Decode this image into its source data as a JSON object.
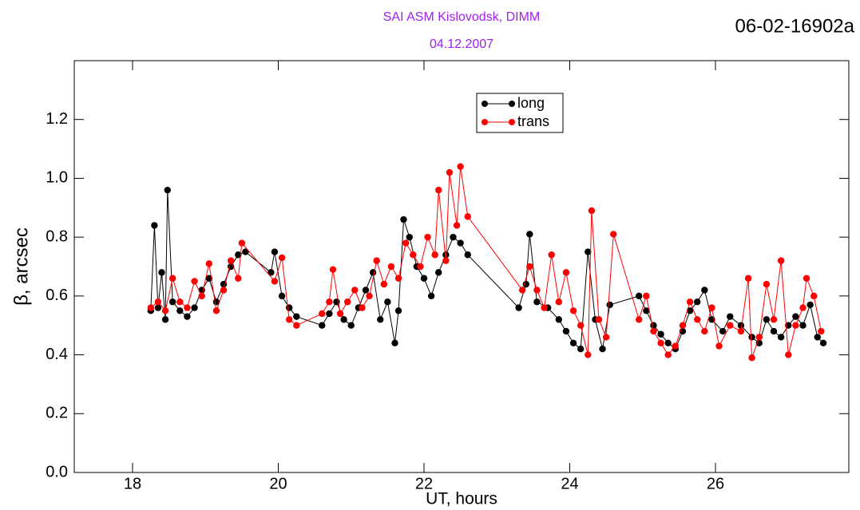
{
  "chart_data": {
    "type": "line",
    "title": "SAI ASM Kislovodsk,  DIMM",
    "subtitle": "04.12.2007",
    "annotation": "06-02-16902a",
    "title_color": "#a020f0",
    "xlabel": "UT, hours",
    "ylabel": "β, arcsec",
    "xlim": [
      17.2,
      27.83
    ],
    "ylim": [
      0,
      1.4
    ],
    "xticks": [
      18,
      20,
      22,
      24,
      26
    ],
    "yticks": [
      {
        "value": 0,
        "label": "0.0"
      },
      0.2,
      0.4,
      0.6,
      0.8,
      {
        "value": 1,
        "label": "1.0"
      },
      1.2
    ],
    "legend": "top-center",
    "series": [
      {
        "name": "long",
        "color": "#000000",
        "x": [
          18.25,
          18.3,
          18.35,
          18.4,
          18.45,
          18.48,
          18.55,
          18.65,
          18.75,
          18.85,
          18.95,
          19.05,
          19.15,
          19.25,
          19.35,
          19.45,
          19.55,
          19.9,
          19.95,
          20.05,
          20.15,
          20.25,
          20.6,
          20.7,
          20.8,
          20.9,
          21.0,
          21.1,
          21.2,
          21.3,
          21.4,
          21.5,
          21.6,
          21.65,
          21.72,
          21.8,
          21.9,
          22.0,
          22.1,
          22.2,
          22.3,
          22.4,
          22.5,
          22.6,
          23.3,
          23.4,
          23.45,
          23.55,
          23.7,
          23.85,
          23.95,
          24.05,
          24.15,
          24.25,
          24.35,
          24.45,
          24.55,
          24.95,
          25.05,
          25.15,
          25.25,
          25.35,
          25.45,
          25.55,
          25.65,
          25.75,
          25.85,
          25.95,
          26.1,
          26.2,
          26.35,
          26.5,
          26.6,
          26.7,
          26.8,
          26.9,
          27.0,
          27.1,
          27.2,
          27.3,
          27.4,
          27.48
        ],
        "values": [
          0.55,
          0.84,
          0.56,
          0.68,
          0.52,
          0.96,
          0.58,
          0.55,
          0.53,
          0.56,
          0.62,
          0.66,
          0.58,
          0.64,
          0.7,
          0.74,
          0.75,
          0.68,
          0.75,
          0.6,
          0.56,
          0.53,
          0.5,
          0.54,
          0.58,
          0.52,
          0.5,
          0.56,
          0.62,
          0.68,
          0.52,
          0.58,
          0.44,
          0.55,
          0.86,
          0.8,
          0.7,
          0.66,
          0.6,
          0.68,
          0.74,
          0.8,
          0.78,
          0.74,
          0.56,
          0.64,
          0.81,
          0.58,
          0.56,
          0.52,
          0.48,
          0.44,
          0.42,
          0.75,
          0.52,
          0.42,
          0.57,
          0.6,
          0.55,
          0.5,
          0.47,
          0.44,
          0.42,
          0.48,
          0.55,
          0.58,
          0.62,
          0.52,
          0.48,
          0.53,
          0.5,
          0.46,
          0.44,
          0.52,
          0.48,
          0.46,
          0.5,
          0.53,
          0.5,
          0.57,
          0.46,
          0.44
        ]
      },
      {
        "name": "trans",
        "color": "#ff0000",
        "x": [
          18.25,
          18.35,
          18.45,
          18.55,
          18.65,
          18.75,
          18.85,
          18.95,
          19.05,
          19.15,
          19.25,
          19.35,
          19.45,
          19.5,
          19.95,
          20.05,
          20.15,
          20.25,
          20.6,
          20.7,
          20.75,
          20.85,
          20.95,
          21.05,
          21.15,
          21.25,
          21.35,
          21.45,
          21.55,
          21.65,
          21.75,
          21.85,
          21.95,
          22.05,
          22.15,
          22.2,
          22.3,
          22.35,
          22.45,
          22.5,
          22.6,
          23.35,
          23.45,
          23.55,
          23.65,
          23.75,
          23.85,
          23.95,
          24.05,
          24.15,
          24.25,
          24.3,
          24.4,
          24.5,
          24.6,
          24.95,
          25.05,
          25.15,
          25.25,
          25.35,
          25.45,
          25.55,
          25.65,
          25.75,
          25.85,
          25.95,
          26.05,
          26.2,
          26.35,
          26.45,
          26.5,
          26.6,
          26.7,
          26.8,
          26.9,
          27.0,
          27.1,
          27.2,
          27.25,
          27.35,
          27.45
        ],
        "values": [
          0.56,
          0.58,
          0.55,
          0.66,
          0.58,
          0.56,
          0.65,
          0.6,
          0.71,
          0.55,
          0.62,
          0.72,
          0.66,
          0.78,
          0.65,
          0.73,
          0.52,
          0.5,
          0.54,
          0.58,
          0.69,
          0.54,
          0.58,
          0.62,
          0.56,
          0.6,
          0.72,
          0.64,
          0.7,
          0.66,
          0.78,
          0.74,
          0.7,
          0.8,
          0.74,
          0.96,
          0.72,
          1.02,
          0.84,
          1.04,
          0.87,
          0.62,
          0.7,
          0.62,
          0.56,
          0.74,
          0.58,
          0.68,
          0.55,
          0.5,
          0.4,
          0.89,
          0.52,
          0.46,
          0.81,
          0.52,
          0.6,
          0.48,
          0.44,
          0.4,
          0.43,
          0.5,
          0.58,
          0.52,
          0.48,
          0.56,
          0.43,
          0.5,
          0.48,
          0.66,
          0.39,
          0.46,
          0.64,
          0.52,
          0.72,
          0.4,
          0.5,
          0.56,
          0.66,
          0.6,
          0.48
        ]
      }
    ]
  }
}
